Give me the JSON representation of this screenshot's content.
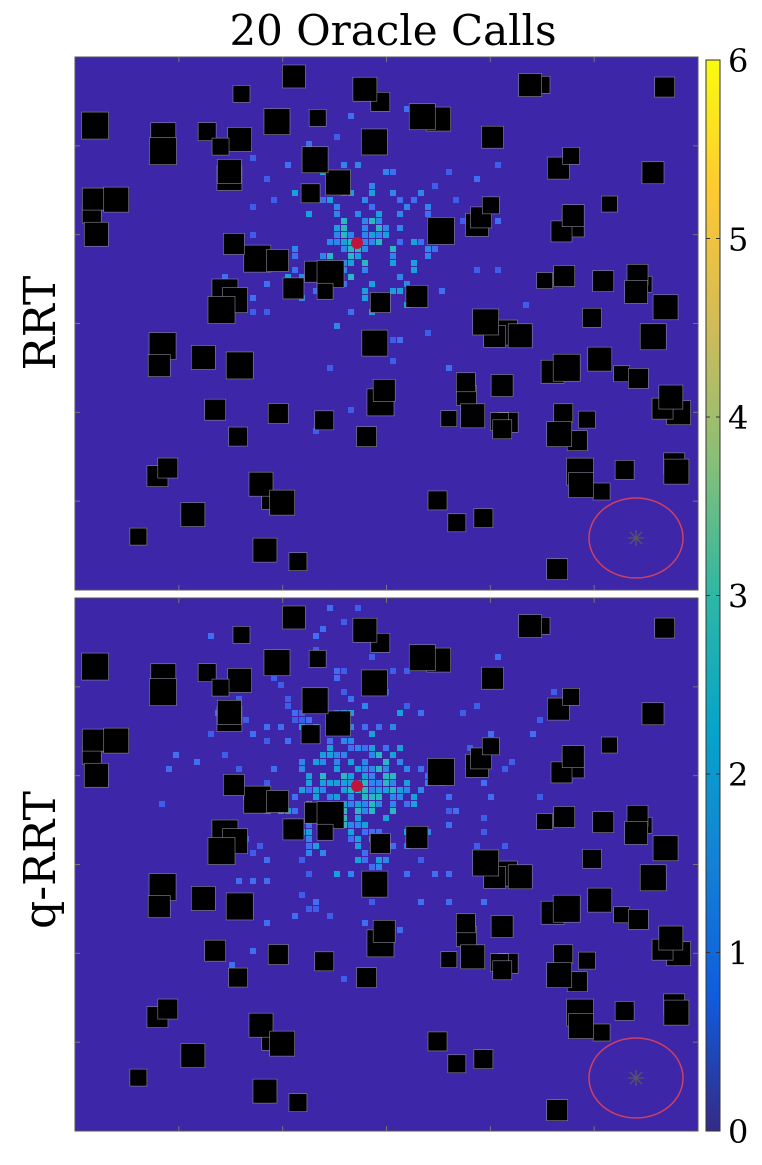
{
  "chart_data": [
    {
      "type": "heatmap",
      "title": "20 Oracle Calls",
      "ylabel": "RRT",
      "colorbar": {
        "ticks": [
          "0",
          "1",
          "2",
          "3",
          "4",
          "5",
          "6"
        ],
        "range": [
          0,
          6
        ],
        "colormap": "parula"
      },
      "grid": false,
      "background_value": 0,
      "obstacle_color": "#000000",
      "start_marker": {
        "type": "dot",
        "color": "#c0143c"
      },
      "goal_marker": {
        "type": "asterisk",
        "region": "circle",
        "color": "#d04060"
      }
    },
    {
      "type": "heatmap",
      "ylabel": "q-RRT",
      "colorbar": {
        "ticks": [
          "0",
          "1",
          "2",
          "3",
          "4",
          "5",
          "6"
        ],
        "range": [
          0,
          6
        ],
        "colormap": "parula"
      },
      "grid": false,
      "background_value": 0,
      "obstacle_color": "#000000",
      "start_marker": {
        "type": "dot",
        "color": "#c0143c"
      },
      "goal_marker": {
        "type": "asterisk",
        "region": "circle",
        "color": "#d04060"
      }
    }
  ],
  "colors": {
    "background": "#3e26a8",
    "obstacle": "#000000",
    "start": "#c0143c",
    "goal_region": "#d04060",
    "goal_star": "#555566"
  }
}
